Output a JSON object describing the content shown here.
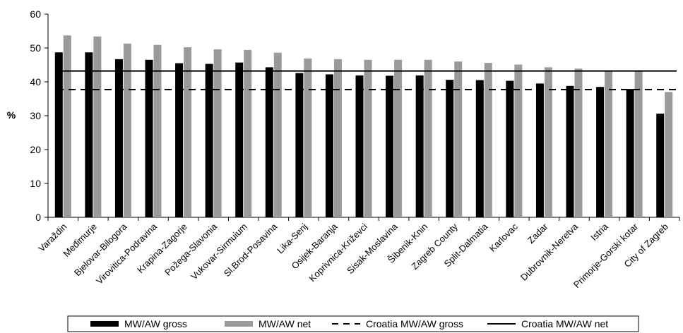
{
  "chart_data": {
    "type": "bar",
    "ylabel": "%",
    "xlabel": "",
    "title": "",
    "ylim": [
      0,
      60
    ],
    "yticks": [
      0,
      10,
      20,
      30,
      40,
      50,
      60
    ],
    "grid": false,
    "legend_position": "bottom",
    "categories": [
      "Varaždin",
      "Međimurje",
      "Bjelovar-Bilogora",
      "Virovitica-Podravina",
      "Krapina-Zagorje",
      "Požega-Slavonia",
      "Vukovar-Sirmuium",
      "Sl.Brod-Posavina",
      "Lika-Senj",
      "Osijek-Baranja",
      "Koprivnica-Križevci",
      "Sisak-Moslavina",
      "Šibenik-Knin",
      "Zagreb County",
      "Split-Dalmatia",
      "Karlovac",
      "Zadar",
      "Dubrovnik-Neretva",
      "Istria",
      "Primorje-Gorski kotar",
      "City of Zagreb"
    ],
    "series": [
      {
        "name": "MW/AW gross",
        "color": "#000000",
        "values": [
          48.7,
          48.7,
          46.7,
          46.5,
          45.5,
          45.3,
          45.7,
          44.3,
          42.6,
          42.2,
          41.9,
          41.8,
          41.9,
          40.6,
          40.5,
          40.3,
          39.5,
          38.8,
          38.5,
          37.9,
          30.6
        ]
      },
      {
        "name": "MW/AW net",
        "color": "#9a9a9a",
        "values": [
          53.7,
          53.4,
          51.3,
          50.9,
          50.2,
          49.6,
          49.4,
          48.6,
          46.9,
          46.7,
          46.5,
          46.5,
          46.5,
          46.0,
          45.6,
          45.1,
          44.3,
          43.9,
          43.4,
          43.4,
          37.0
        ]
      }
    ],
    "reference_lines": [
      {
        "name": "Croatia MW/AW gross",
        "value": 37.7,
        "style": "dashed",
        "color": "#000000"
      },
      {
        "name": "Croatia MW/AW net",
        "value": 43.2,
        "style": "solid",
        "color": "#000000"
      }
    ]
  }
}
